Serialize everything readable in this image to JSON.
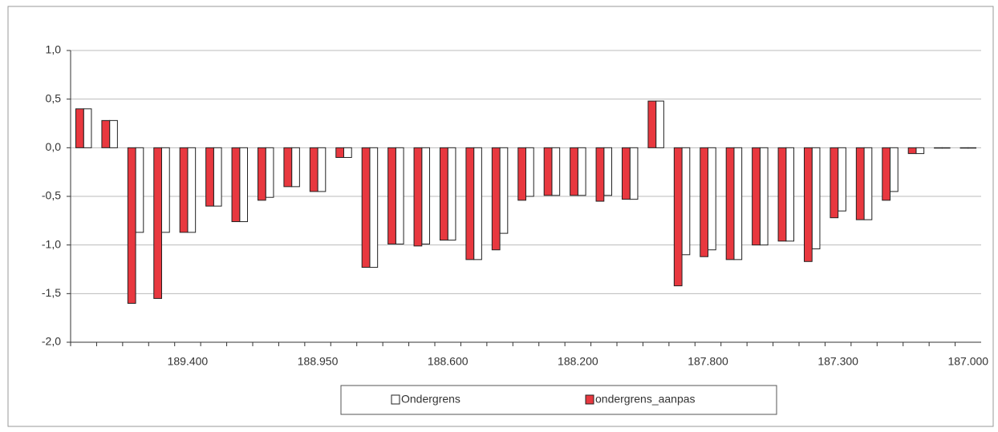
{
  "chart_data": {
    "type": "bar",
    "categories": [
      null,
      null,
      null,
      null,
      "189.400",
      null,
      null,
      null,
      null,
      "188.950",
      null,
      null,
      null,
      null,
      "188.600",
      null,
      null,
      null,
      null,
      "188.200",
      null,
      null,
      null,
      null,
      "187.800",
      null,
      null,
      null,
      null,
      "187.300",
      null,
      null,
      null,
      null,
      "187.000"
    ],
    "series": [
      {
        "name": "Ondergrens",
        "color": "#ffffff",
        "values": [
          0.4,
          0.28,
          -0.87,
          -0.87,
          -0.87,
          -0.6,
          -0.76,
          -0.51,
          -0.4,
          -0.45,
          -0.1,
          -1.23,
          -0.99,
          -0.99,
          -0.95,
          -1.15,
          -0.88,
          -0.5,
          -0.49,
          -0.49,
          -0.49,
          -0.53,
          0.48,
          -1.1,
          -1.05,
          -1.15,
          -1.0,
          -0.96,
          -1.04,
          -0.65,
          -0.74,
          -0.45,
          -0.06,
          0,
          0
        ]
      },
      {
        "name": "ondergrens_aanpas",
        "color": "#e8383f",
        "values": [
          0.4,
          0.28,
          -1.6,
          -1.55,
          -0.87,
          -0.6,
          -0.76,
          -0.54,
          -0.4,
          -0.45,
          -0.1,
          -1.23,
          -0.99,
          -1.01,
          -0.95,
          -1.15,
          -1.05,
          -0.54,
          -0.49,
          -0.49,
          -0.55,
          -0.53,
          0.48,
          -1.42,
          -1.12,
          -1.15,
          -1.0,
          -0.96,
          -1.17,
          -0.72,
          -0.74,
          -0.54,
          -0.06,
          0,
          0
        ]
      }
    ],
    "ylim": [
      -2,
      1
    ],
    "yticks": [
      {
        "value": -2,
        "label": "-2,0"
      },
      {
        "value": -1.5,
        "label": "-1,5"
      },
      {
        "value": -1,
        "label": "-1,0"
      },
      {
        "value": -0.5,
        "label": "-0,5"
      },
      {
        "value": 0,
        "label": "0,0"
      },
      {
        "value": 0.5,
        "label": "0,5"
      },
      {
        "value": 1,
        "label": "1,0"
      }
    ],
    "grid": true,
    "legend": "bottom"
  }
}
